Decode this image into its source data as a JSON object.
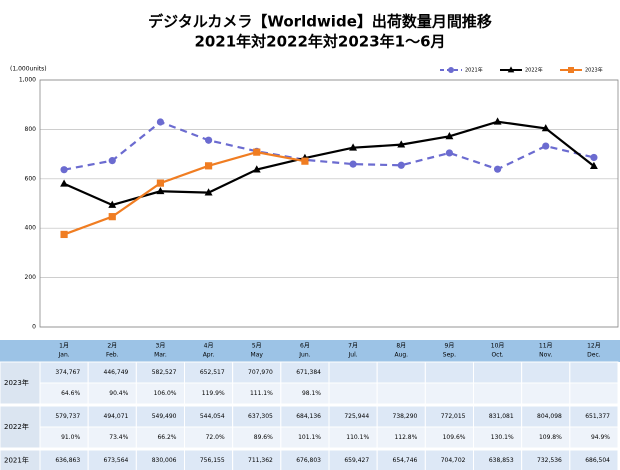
{
  "chart_data": {
    "type": "line",
    "title": "デジタルカメラ【Worldwide】出荷数量月間推移",
    "subtitle": "2021年対2022年対2023年1～6月",
    "y_unit_label": "(1,000units)",
    "categories": [
      "1月",
      "2月",
      "3月",
      "4月",
      "5月",
      "6月",
      "7月",
      "8月",
      "9月",
      "10月",
      "11月",
      "12月"
    ],
    "categories_en": [
      "Jan.",
      "Feb.",
      "Mar.",
      "Apr.",
      "May",
      "Jun.",
      "Jul.",
      "Aug.",
      "Sep.",
      "Oct.",
      "Nov.",
      "Dec."
    ],
    "ylim": [
      0,
      1000
    ],
    "yticks": [
      0,
      200,
      400,
      600,
      800,
      {
        "value": 1000,
        "label": "1,000"
      }
    ],
    "grid": true,
    "legend": "top-right",
    "series": [
      {
        "name": "2021年",
        "color": "#6b6bd0",
        "dash": true,
        "marker": "circle",
        "values": [
          636.863,
          673.564,
          830.006,
          756.155,
          711.362,
          676.803,
          659.427,
          654.746,
          704.702,
          638.853,
          732.536,
          686.504
        ],
        "value_labels": [
          "636,863",
          "673,564",
          "830,006",
          "756,155",
          "711,362",
          "676,803",
          "659,427",
          "654,746",
          "704,702",
          "638,853",
          "732,536",
          "686,504"
        ]
      },
      {
        "name": "2022年",
        "color": "#000000",
        "dash": false,
        "marker": "triangle",
        "values": [
          579.737,
          494.071,
          549.49,
          544.054,
          637.305,
          684.136,
          725.944,
          738.29,
          772.015,
          831.081,
          804.098,
          651.377
        ],
        "value_labels": [
          "579,737",
          "494,071",
          "549,490",
          "544,054",
          "637,305",
          "684,136",
          "725,944",
          "738,290",
          "772,015",
          "831,081",
          "804,098",
          "651,377"
        ],
        "yoy": [
          "91.0%",
          "73.4%",
          "66.2%",
          "72.0%",
          "89.6%",
          "101.1%",
          "110.1%",
          "112.8%",
          "109.6%",
          "130.1%",
          "109.8%",
          "94.9%"
        ]
      },
      {
        "name": "2023年",
        "color": "#f07d22",
        "dash": false,
        "marker": "square",
        "values": [
          374.767,
          446.749,
          582.527,
          652.517,
          707.97,
          671.384,
          null,
          null,
          null,
          null,
          null,
          null
        ],
        "value_labels": [
          "374,767",
          "446,749",
          "582,527",
          "652,517",
          "707,970",
          "671,384",
          null,
          null,
          null,
          null,
          null,
          null
        ],
        "yoy": [
          "64.6%",
          "90.4%",
          "106.0%",
          "119.9%",
          "111.1%",
          "98.1%",
          null,
          null,
          null,
          null,
          null,
          null
        ]
      }
    ]
  }
}
